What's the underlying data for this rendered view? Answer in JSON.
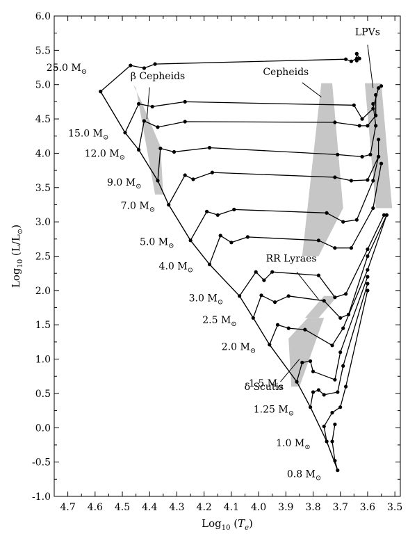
{
  "chart_data": {
    "type": "line",
    "title": "",
    "xlabel": "Log",
    "xlabel_sub": "10",
    "xlabel_open": " (",
    "xlabel_var": "T",
    "xlabel_var_sub": "e",
    "xlabel_close": ")",
    "ylabel": "Log",
    "ylabel_sub": "10",
    "ylabel_rest": " (L/L",
    "ylabel_sym": "⊙",
    "ylabel_close": ")",
    "xlim": [
      4.75,
      3.48
    ],
    "ylim": [
      -1.0,
      6.0
    ],
    "x_reversed": true,
    "x_ticks": [
      4.7,
      4.6,
      4.5,
      4.4,
      4.3,
      4.2,
      4.1,
      4.0,
      3.9,
      3.8,
      3.7,
      3.6,
      3.5
    ],
    "x_tick_labels": [
      "4.7",
      "4.6",
      "4.5",
      "4.4",
      "4.3",
      "4.2",
      "4.1",
      "4.0",
      "3.9",
      "3.8",
      "3.7",
      "3.6",
      "3.5"
    ],
    "y_ticks": [
      -1.0,
      -0.5,
      0.0,
      0.5,
      1.0,
      1.5,
      2.0,
      2.5,
      3.0,
      3.5,
      4.0,
      4.5,
      5.0,
      5.5,
      6.0
    ],
    "y_tick_labels": [
      "-1.0",
      "-0.5",
      "0.0",
      "0.5",
      "1.0",
      "1.5",
      "2.0",
      "2.5",
      "3.0",
      "3.5",
      "4.0",
      "4.5",
      "5.0",
      "5.5",
      "6.0"
    ],
    "grid": false,
    "zams": [
      [
        4.58,
        4.9
      ],
      [
        4.49,
        4.3
      ],
      [
        4.44,
        4.05
      ],
      [
        4.37,
        3.6
      ],
      [
        4.33,
        3.25
      ],
      [
        4.25,
        2.73
      ],
      [
        4.18,
        2.38
      ],
      [
        4.07,
        1.92
      ],
      [
        4.02,
        1.6
      ],
      [
        3.96,
        1.21
      ],
      [
        3.86,
        0.67
      ],
      [
        3.81,
        0.3
      ],
      [
        3.75,
        -0.2
      ],
      [
        3.71,
        -0.62
      ]
    ],
    "tracks": [
      {
        "mass": "25.0",
        "points": [
          [
            4.58,
            4.9
          ],
          [
            4.47,
            5.28
          ],
          [
            4.42,
            5.24
          ],
          [
            4.38,
            5.3
          ],
          [
            3.68,
            5.37
          ],
          [
            3.66,
            5.34
          ],
          [
            3.64,
            5.38
          ],
          [
            3.64,
            5.45
          ],
          [
            3.64,
            5.45
          ],
          [
            3.63,
            5.38
          ],
          [
            3.64,
            5.35
          ]
        ]
      },
      {
        "mass": "15.0",
        "points": [
          [
            4.49,
            4.3
          ],
          [
            4.44,
            4.72
          ],
          [
            4.39,
            4.68
          ],
          [
            4.27,
            4.75
          ],
          [
            3.65,
            4.7
          ],
          [
            3.62,
            4.5
          ],
          [
            3.58,
            4.65
          ],
          [
            3.56,
            4.95
          ],
          [
            3.55,
            4.98
          ]
        ]
      },
      {
        "mass": "12.0",
        "points": [
          [
            4.44,
            4.05
          ],
          [
            4.42,
            4.47
          ],
          [
            4.37,
            4.38
          ],
          [
            4.27,
            4.46
          ],
          [
            3.72,
            4.45
          ],
          [
            3.63,
            4.4
          ],
          [
            3.6,
            4.4
          ],
          [
            3.57,
            4.55
          ],
          [
            3.57,
            4.85
          ]
        ]
      },
      {
        "mass": "9.0",
        "points": [
          [
            4.37,
            3.6
          ],
          [
            4.36,
            4.07
          ],
          [
            4.31,
            4.02
          ],
          [
            4.18,
            4.08
          ],
          [
            3.71,
            3.98
          ],
          [
            3.62,
            3.95
          ],
          [
            3.59,
            3.98
          ],
          [
            3.57,
            4.4
          ],
          [
            3.58,
            4.72
          ]
        ]
      },
      {
        "mass": "7.0",
        "points": [
          [
            4.33,
            3.25
          ],
          [
            4.27,
            3.68
          ],
          [
            4.24,
            3.62
          ],
          [
            4.17,
            3.72
          ],
          [
            3.72,
            3.65
          ],
          [
            3.66,
            3.6
          ],
          [
            3.6,
            3.61
          ],
          [
            3.56,
            3.95
          ],
          [
            3.56,
            4.2
          ]
        ]
      },
      {
        "mass": "5.0",
        "points": [
          [
            4.25,
            2.73
          ],
          [
            4.19,
            3.15
          ],
          [
            4.15,
            3.1
          ],
          [
            4.09,
            3.18
          ],
          [
            3.75,
            3.13
          ],
          [
            3.69,
            3.0
          ],
          [
            3.64,
            3.03
          ],
          [
            3.58,
            3.6
          ],
          [
            3.56,
            3.95
          ]
        ]
      },
      {
        "mass": "4.0",
        "points": [
          [
            4.18,
            2.38
          ],
          [
            4.14,
            2.8
          ],
          [
            4.1,
            2.7
          ],
          [
            4.04,
            2.78
          ],
          [
            3.78,
            2.73
          ],
          [
            3.72,
            2.62
          ],
          [
            3.66,
            2.62
          ],
          [
            3.58,
            3.2
          ],
          [
            3.55,
            3.85
          ]
        ]
      },
      {
        "mass": "3.0",
        "points": [
          [
            4.07,
            1.92
          ],
          [
            4.01,
            2.27
          ],
          [
            3.98,
            2.15
          ],
          [
            3.95,
            2.27
          ],
          [
            3.78,
            2.22
          ],
          [
            3.72,
            1.9
          ],
          [
            3.68,
            1.95
          ],
          [
            3.6,
            2.6
          ],
          [
            3.54,
            3.1
          ]
        ]
      },
      {
        "mass": "2.5",
        "points": [
          [
            4.02,
            1.6
          ],
          [
            3.99,
            1.93
          ],
          [
            3.94,
            1.83
          ],
          [
            3.89,
            1.92
          ],
          [
            3.76,
            1.85
          ],
          [
            3.7,
            1.6
          ],
          [
            3.67,
            1.65
          ],
          [
            3.6,
            2.5
          ],
          [
            3.53,
            3.1
          ]
        ]
      },
      {
        "mass": "2.0",
        "points": [
          [
            3.96,
            1.21
          ],
          [
            3.93,
            1.5
          ],
          [
            3.89,
            1.45
          ],
          [
            3.83,
            1.43
          ],
          [
            3.73,
            1.2
          ],
          [
            3.69,
            1.45
          ],
          [
            3.6,
            2.3
          ],
          [
            3.53,
            3.1
          ]
        ]
      },
      {
        "mass": "1.5",
        "points": [
          [
            3.86,
            0.67
          ],
          [
            3.84,
            0.95
          ],
          [
            3.81,
            0.97
          ],
          [
            3.8,
            0.82
          ],
          [
            3.72,
            0.7
          ],
          [
            3.7,
            1.1
          ],
          [
            3.6,
            2.2
          ]
        ]
      },
      {
        "mass": "1.25",
        "points": [
          [
            3.81,
            0.3
          ],
          [
            3.8,
            0.52
          ],
          [
            3.78,
            0.55
          ],
          [
            3.76,
            0.48
          ],
          [
            3.71,
            0.52
          ],
          [
            3.69,
            0.9
          ],
          [
            3.6,
            2.1
          ]
        ]
      },
      {
        "mass": "1.0",
        "points": [
          [
            3.75,
            -0.2
          ],
          [
            3.76,
            0.02
          ],
          [
            3.73,
            0.22
          ],
          [
            3.7,
            0.3
          ],
          [
            3.68,
            0.6
          ],
          [
            3.6,
            2.0
          ]
        ]
      },
      {
        "mass": "0.8",
        "points": [
          [
            3.71,
            -0.62
          ],
          [
            3.72,
            -0.48
          ],
          [
            3.73,
            -0.2
          ],
          [
            3.72,
            0.05
          ]
        ]
      }
    ],
    "mass_labels": [
      {
        "text": "25.0 M",
        "x": 4.63,
        "y": 5.2
      },
      {
        "text": "15.0 M",
        "x": 4.55,
        "y": 4.24
      },
      {
        "text": "12.0 M",
        "x": 4.49,
        "y": 3.95
      },
      {
        "text": "9.0 M",
        "x": 4.43,
        "y": 3.53
      },
      {
        "text": "7.0 M",
        "x": 4.38,
        "y": 3.19
      },
      {
        "text": "5.0 M",
        "x": 4.31,
        "y": 2.66
      },
      {
        "text": "4.0 M",
        "x": 4.24,
        "y": 2.31
      },
      {
        "text": "3.0 M",
        "x": 4.13,
        "y": 1.84
      },
      {
        "text": "2.5 M",
        "x": 4.08,
        "y": 1.52
      },
      {
        "text": "2.0 M",
        "x": 4.01,
        "y": 1.13
      },
      {
        "text": "1.5 M",
        "x": 3.91,
        "y": 0.6
      },
      {
        "text": "1.25 M",
        "x": 3.87,
        "y": 0.22
      },
      {
        "text": "1.0 M",
        "x": 3.81,
        "y": -0.27
      },
      {
        "text": "0.8 M",
        "x": 3.77,
        "y": -0.72
      }
    ],
    "mass_sym": "⊙",
    "instability_regions": [
      {
        "label": "β Cepheids",
        "polygon": [
          [
            4.46,
            5.0
          ],
          [
            4.45,
            4.95
          ],
          [
            4.38,
            3.4
          ],
          [
            4.35,
            3.4
          ],
          [
            4.36,
            4.1
          ],
          [
            4.43,
            4.75
          ]
        ]
      },
      {
        "label": "Cepheids",
        "polygon": [
          [
            3.77,
            5.02
          ],
          [
            3.73,
            5.02
          ],
          [
            3.69,
            3.2
          ],
          [
            3.78,
            2.5
          ],
          [
            3.84,
            2.5
          ]
        ]
      },
      {
        "label": "LPVs",
        "polygon": [
          [
            3.61,
            5.02
          ],
          [
            3.55,
            5.02
          ],
          [
            3.51,
            3.2
          ],
          [
            3.57,
            3.2
          ]
        ]
      },
      {
        "label": "RR Lyraes",
        "polygon": [
          [
            3.76,
            1.92
          ],
          [
            3.71,
            1.92
          ],
          [
            3.78,
            1.6
          ],
          [
            3.83,
            1.6
          ]
        ]
      },
      {
        "label": "δ Scutis",
        "polygon": [
          [
            3.82,
            1.6
          ],
          [
            3.76,
            1.6
          ],
          [
            3.85,
            0.6
          ],
          [
            3.88,
            0.6
          ],
          [
            3.89,
            1.3
          ]
        ]
      }
    ],
    "annotations": [
      {
        "text": "β Cepheids",
        "x": 4.37,
        "y": 5.08,
        "ax": 4.41,
        "ay": 4.5,
        "lx": 4.4,
        "ly": 4.96
      },
      {
        "text": "Cepheids",
        "x": 3.9,
        "y": 5.14,
        "ax": 3.77,
        "ay": 4.82,
        "lx": 3.84,
        "ly": 5.03
      },
      {
        "text": "LPVs",
        "x": 3.6,
        "y": 5.72,
        "ax": 3.58,
        "ay": 4.95,
        "lx": 3.6,
        "ly": 5.58
      },
      {
        "text": "RR Lyraes",
        "x": 3.88,
        "y": 2.42,
        "ax": 3.78,
        "ay": 1.87,
        "lx": 3.86,
        "ly": 2.27
      },
      {
        "text": "δ Scutis",
        "x": 3.98,
        "y": 0.55,
        "ax": 3.85,
        "ay": 1.0,
        "lx": 3.92,
        "ly": 0.67
      }
    ]
  }
}
